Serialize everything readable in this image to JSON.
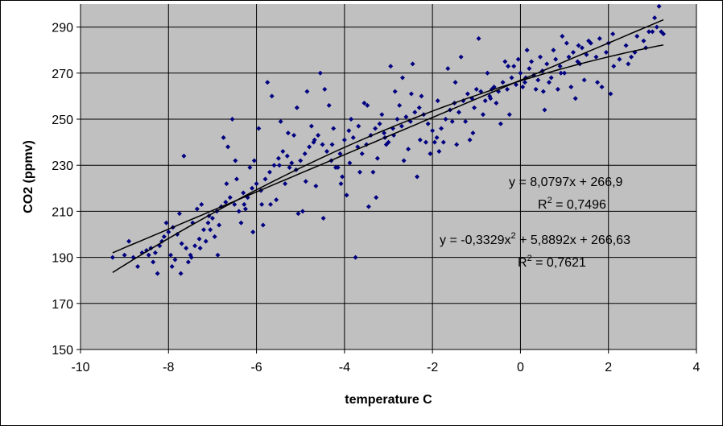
{
  "chart_data": {
    "type": "scatter",
    "title": "",
    "xlabel": "temperature C",
    "ylabel": "CO2 (ppmv)",
    "xlim": [
      -10,
      4
    ],
    "ylim": [
      150,
      300
    ],
    "x_ticks": [
      -10,
      -8,
      -6,
      -4,
      -2,
      0,
      2,
      4
    ],
    "y_ticks": [
      150,
      170,
      190,
      210,
      230,
      250,
      270,
      290
    ],
    "grid": "horizontal and vertical",
    "plot_background": "#c0c0c0",
    "marker_color": "#000080",
    "line_color": "#000000",
    "trendlines": [
      {
        "kind": "linear",
        "equation": "y = 8,0797x + 266,9",
        "r2_label": "R",
        "r2_exp": "2",
        "r2_value": " = 0,7496",
        "coefficients": [
          266.9,
          8.0797
        ]
      },
      {
        "kind": "polynomial",
        "equation_pre": "y = -0,3329x",
        "equation_exp": "2",
        "equation_post": " + 5,8892x + 266,63",
        "r2_label": "R",
        "r2_exp": "2",
        "r2_value": " = 0,7621",
        "coefficients": [
          266.63,
          5.8892,
          -0.3329
        ]
      }
    ],
    "points": [
      [
        -9.27,
        190
      ],
      [
        -8.8,
        190
      ],
      [
        -8.6,
        192
      ],
      [
        -8.5,
        193
      ],
      [
        -8.4,
        194
      ],
      [
        -8.3,
        192
      ],
      [
        -8.2,
        195
      ],
      [
        -8.1,
        199
      ],
      [
        -8.0,
        201
      ],
      [
        -7.9,
        203
      ],
      [
        -7.8,
        200
      ],
      [
        -7.7,
        196
      ],
      [
        -7.6,
        194
      ],
      [
        -7.5,
        191
      ],
      [
        -7.4,
        195
      ],
      [
        -7.3,
        198
      ],
      [
        -7.2,
        202
      ],
      [
        -7.1,
        205
      ],
      [
        -7.0,
        207
      ],
      [
        -6.9,
        210
      ],
      [
        -6.8,
        212
      ],
      [
        -6.7,
        214
      ],
      [
        -6.6,
        216
      ],
      [
        -6.5,
        213
      ],
      [
        -6.4,
        210
      ],
      [
        -6.3,
        218
      ],
      [
        -6.2,
        216
      ],
      [
        -6.1,
        220
      ],
      [
        -6.0,
        222
      ],
      [
        -5.9,
        219
      ],
      [
        -5.8,
        224
      ],
      [
        -5.7,
        227
      ],
      [
        -5.6,
        230
      ],
      [
        -5.5,
        233
      ],
      [
        -5.4,
        236
      ],
      [
        -5.3,
        234
      ],
      [
        -5.2,
        231
      ],
      [
        -5.1,
        228
      ],
      [
        -5.0,
        232
      ],
      [
        -4.9,
        235
      ],
      [
        -4.8,
        238
      ],
      [
        -4.7,
        240
      ],
      [
        -4.6,
        243
      ],
      [
        -4.5,
        239
      ],
      [
        -4.4,
        236
      ],
      [
        -4.3,
        232
      ],
      [
        -4.2,
        229
      ],
      [
        -4.1,
        235
      ],
      [
        -4.0,
        241
      ],
      [
        -3.9,
        245
      ],
      [
        -3.8,
        242
      ],
      [
        -3.7,
        238
      ],
      [
        -3.6,
        235
      ],
      [
        -3.5,
        239
      ],
      [
        -3.4,
        243
      ],
      [
        -3.3,
        246
      ],
      [
        -3.2,
        248
      ],
      [
        -3.1,
        244
      ],
      [
        -3.0,
        240
      ],
      [
        -2.9,
        246
      ],
      [
        -2.8,
        250
      ],
      [
        -2.7,
        247
      ],
      [
        -2.6,
        251
      ],
      [
        -2.5,
        249
      ],
      [
        -2.4,
        253
      ],
      [
        -2.3,
        255
      ],
      [
        -2.2,
        252
      ],
      [
        -2.1,
        248
      ],
      [
        -2.0,
        245
      ],
      [
        -1.9,
        242
      ],
      [
        -1.8,
        246
      ],
      [
        -1.7,
        250
      ],
      [
        -1.6,
        254
      ],
      [
        -1.5,
        257
      ],
      [
        -1.4,
        253
      ],
      [
        -1.3,
        258
      ],
      [
        -1.2,
        261
      ],
      [
        -1.1,
        259
      ],
      [
        -1.0,
        263
      ],
      [
        -0.9,
        262
      ],
      [
        -0.8,
        258
      ],
      [
        -0.7,
        260
      ],
      [
        -0.6,
        264
      ],
      [
        -0.5,
        262
      ],
      [
        -0.4,
        266
      ],
      [
        -0.3,
        263
      ],
      [
        -0.2,
        268
      ],
      [
        -0.1,
        265
      ],
      [
        0.0,
        270
      ],
      [
        0.1,
        266
      ],
      [
        0.2,
        272
      ],
      [
        0.3,
        269
      ],
      [
        0.4,
        267
      ],
      [
        0.5,
        271
      ],
      [
        0.6,
        274
      ],
      [
        0.7,
        268
      ],
      [
        0.8,
        276
      ],
      [
        0.9,
        273
      ],
      [
        1.0,
        270
      ],
      [
        1.1,
        277
      ],
      [
        1.2,
        279
      ],
      [
        1.3,
        275
      ],
      [
        1.4,
        281
      ],
      [
        1.5,
        278
      ],
      [
        1.6,
        283
      ],
      [
        1.8,
        285
      ],
      [
        2.0,
        283
      ],
      [
        2.1,
        287
      ],
      [
        2.4,
        282
      ],
      [
        2.6,
        279
      ],
      [
        2.8,
        284
      ],
      [
        3.0,
        288
      ],
      [
        3.1,
        290
      ],
      [
        3.2,
        288
      ],
      [
        -8.9,
        197
      ],
      [
        -8.7,
        186
      ],
      [
        -8.35,
        188
      ],
      [
        -8.25,
        183
      ],
      [
        -8.05,
        205
      ],
      [
        -7.95,
        191
      ],
      [
        -7.85,
        189
      ],
      [
        -7.75,
        209
      ],
      [
        -7.65,
        234
      ],
      [
        -7.55,
        188
      ],
      [
        -7.45,
        205
      ],
      [
        -7.35,
        211
      ],
      [
        -7.25,
        213
      ],
      [
        -7.15,
        197
      ],
      [
        -7.05,
        202
      ],
      [
        -6.95,
        199
      ],
      [
        -6.85,
        204
      ],
      [
        -6.75,
        242
      ],
      [
        -6.65,
        238
      ],
      [
        -6.55,
        250
      ],
      [
        -6.45,
        224
      ],
      [
        -6.35,
        205
      ],
      [
        -6.25,
        211
      ],
      [
        -6.15,
        229
      ],
      [
        -6.05,
        232
      ],
      [
        -5.95,
        246
      ],
      [
        -5.85,
        204
      ],
      [
        -5.75,
        266
      ],
      [
        -5.65,
        260
      ],
      [
        -5.55,
        215
      ],
      [
        -5.45,
        249
      ],
      [
        -5.35,
        222
      ],
      [
        -5.25,
        229
      ],
      [
        -5.15,
        243
      ],
      [
        -5.05,
        209
      ],
      [
        -4.95,
        210
      ],
      [
        -4.85,
        262
      ],
      [
        -4.75,
        247
      ],
      [
        -4.65,
        221
      ],
      [
        -4.55,
        270
      ],
      [
        -4.45,
        263
      ],
      [
        -4.35,
        256
      ],
      [
        -4.25,
        246
      ],
      [
        -4.15,
        229
      ],
      [
        -4.05,
        225
      ],
      [
        -3.95,
        217
      ],
      [
        -3.85,
        250
      ],
      [
        -3.75,
        190
      ],
      [
        -3.65,
        227
      ],
      [
        -3.55,
        257
      ],
      [
        -3.45,
        212
      ],
      [
        -3.35,
        227
      ],
      [
        -3.25,
        233
      ],
      [
        -3.15,
        252
      ],
      [
        -3.05,
        239
      ],
      [
        -2.95,
        273
      ],
      [
        -2.85,
        262
      ],
      [
        -2.75,
        256
      ],
      [
        -2.65,
        232
      ],
      [
        -2.55,
        237
      ],
      [
        -2.45,
        274
      ],
      [
        -2.35,
        225
      ],
      [
        -2.25,
        260
      ],
      [
        -2.15,
        240
      ],
      [
        -2.05,
        235
      ],
      [
        -1.95,
        240
      ],
      [
        -1.85,
        236
      ],
      [
        -1.75,
        240
      ],
      [
        -1.65,
        272
      ],
      [
        -1.55,
        249
      ],
      [
        -1.45,
        239
      ],
      [
        -1.35,
        277
      ],
      [
        -1.25,
        249
      ],
      [
        -1.15,
        241
      ],
      [
        -1.05,
        255
      ],
      [
        -0.95,
        285
      ],
      [
        -0.85,
        252
      ],
      [
        -0.75,
        270
      ],
      [
        -0.65,
        263
      ],
      [
        -0.55,
        257
      ],
      [
        -0.45,
        248
      ],
      [
        -0.35,
        275
      ],
      [
        -0.25,
        252
      ],
      [
        -0.15,
        273
      ],
      [
        -0.05,
        276
      ],
      [
        0.05,
        264
      ],
      [
        0.15,
        280
      ],
      [
        0.25,
        275
      ],
      [
        0.35,
        263
      ],
      [
        0.45,
        277
      ],
      [
        0.55,
        254
      ],
      [
        0.65,
        266
      ],
      [
        0.75,
        280
      ],
      [
        0.85,
        263
      ],
      [
        0.95,
        286
      ],
      [
        1.05,
        283
      ],
      [
        1.15,
        264
      ],
      [
        1.25,
        259
      ],
      [
        1.35,
        274
      ],
      [
        1.45,
        267
      ],
      [
        1.55,
        284
      ],
      [
        1.75,
        266
      ],
      [
        1.85,
        264
      ],
      [
        1.95,
        279
      ],
      [
        2.05,
        261
      ],
      [
        2.25,
        276
      ],
      [
        2.45,
        274
      ],
      [
        2.65,
        286
      ],
      [
        2.85,
        281
      ],
      [
        3.05,
        294
      ],
      [
        3.15,
        299
      ],
      [
        3.25,
        287
      ],
      [
        -9.0,
        191
      ],
      [
        -8.45,
        191
      ],
      [
        -8.15,
        197
      ],
      [
        -7.92,
        186
      ],
      [
        -7.72,
        183
      ],
      [
        -7.48,
        190
      ],
      [
        -7.28,
        194
      ],
      [
        -7.08,
        208
      ],
      [
        -6.88,
        191
      ],
      [
        -6.68,
        222
      ],
      [
        -6.48,
        232
      ],
      [
        -6.28,
        213
      ],
      [
        -6.08,
        201
      ],
      [
        -5.88,
        213
      ],
      [
        -5.68,
        213
      ],
      [
        -5.48,
        230
      ],
      [
        -5.28,
        244
      ],
      [
        -5.08,
        255
      ],
      [
        -4.88,
        223
      ],
      [
        -4.68,
        241
      ],
      [
        -4.48,
        207
      ],
      [
        -4.28,
        239
      ],
      [
        -4.08,
        222
      ],
      [
        -3.88,
        231
      ],
      [
        -3.68,
        247
      ],
      [
        -3.48,
        256
      ],
      [
        -3.28,
        216
      ],
      [
        -3.08,
        242
      ],
      [
        -2.88,
        243
      ],
      [
        -2.68,
        268
      ],
      [
        -2.48,
        261
      ],
      [
        -2.28,
        241
      ],
      [
        -1.88,
        258
      ],
      [
        -1.48,
        266
      ],
      [
        -1.08,
        244
      ],
      [
        -0.68,
        259
      ],
      [
        -0.28,
        273
      ],
      [
        0.12,
        268
      ],
      [
        0.52,
        262
      ],
      [
        0.92,
        270
      ],
      [
        1.32,
        282
      ],
      [
        1.72,
        277
      ],
      [
        2.12,
        273
      ],
      [
        2.52,
        277
      ],
      [
        2.92,
        288
      ]
    ]
  }
}
